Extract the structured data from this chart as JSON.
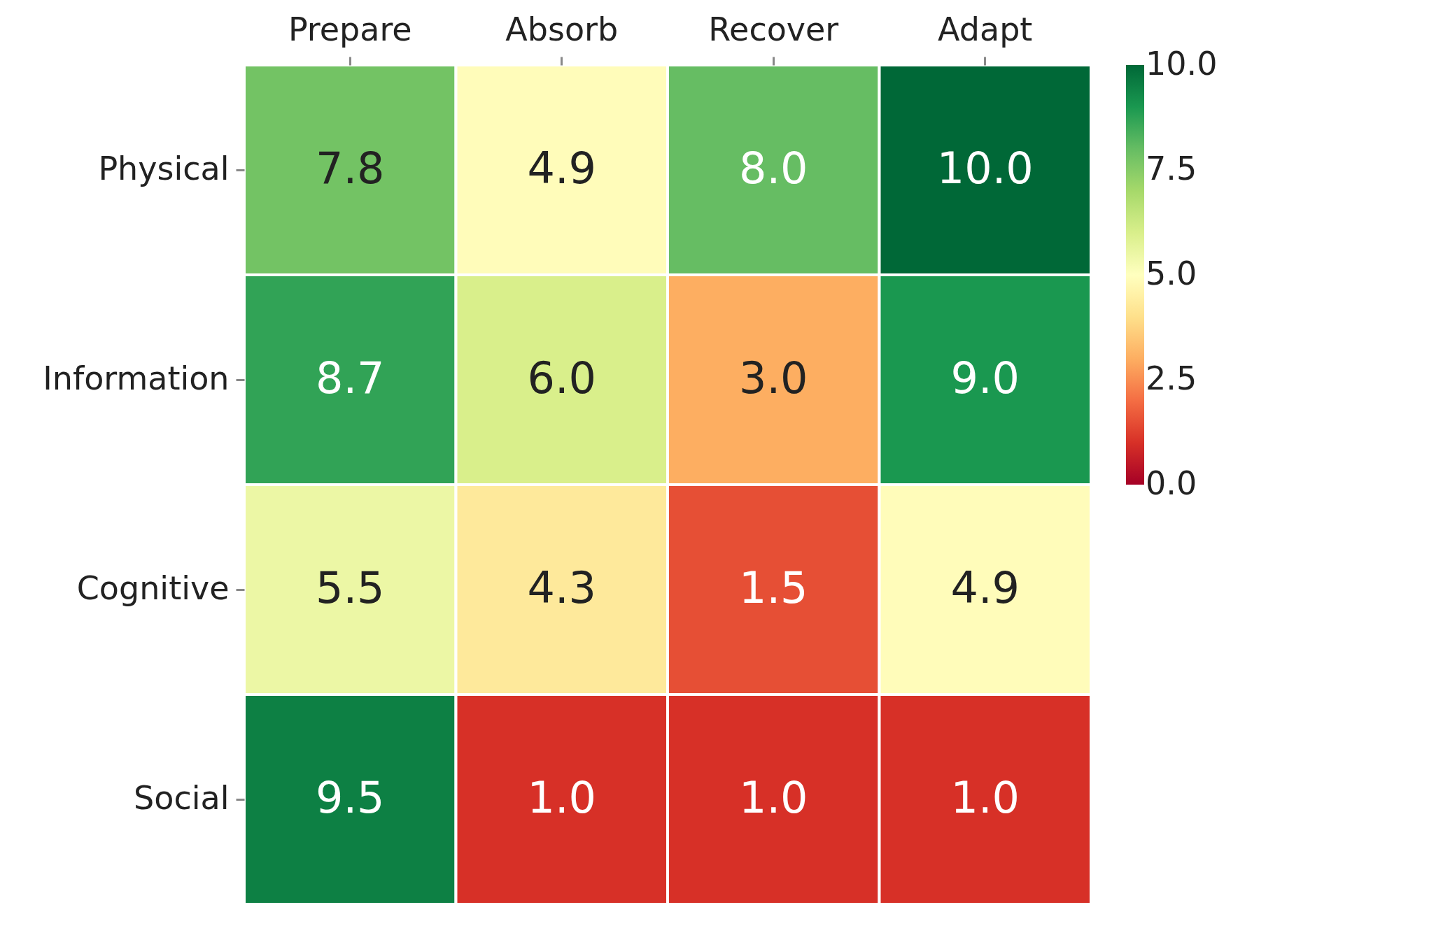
{
  "chart_data": {
    "type": "heatmap",
    "categories": [
      "Prepare",
      "Absorb",
      "Recover",
      "Adapt"
    ],
    "y_categories": [
      "Physical",
      "Information",
      "Cognitive",
      "Social"
    ],
    "cells": [
      [
        7.8,
        4.9,
        8.0,
        10.0
      ],
      [
        8.7,
        6.0,
        3.0,
        9.0
      ],
      [
        5.5,
        4.3,
        1.5,
        4.9
      ],
      [
        9.5,
        1.0,
        1.0,
        1.0
      ]
    ],
    "cell_labels": [
      [
        "7.8",
        "4.9",
        "8.0",
        "10.0"
      ],
      [
        "8.7",
        "6.0",
        "3.0",
        "9.0"
      ],
      [
        "5.5",
        "4.3",
        "1.5",
        "4.9"
      ],
      [
        "9.5",
        "1.0",
        "1.0",
        "1.0"
      ]
    ],
    "clim": [
      0,
      10
    ],
    "cticks": [
      {
        "value": 0,
        "label": "0.0"
      },
      {
        "value": 2.5,
        "label": "2.5"
      },
      {
        "value": 5,
        "label": "5.0"
      },
      {
        "value": 7.5,
        "label": "7.5"
      },
      {
        "value": 10,
        "label": "10.0"
      }
    ]
  }
}
